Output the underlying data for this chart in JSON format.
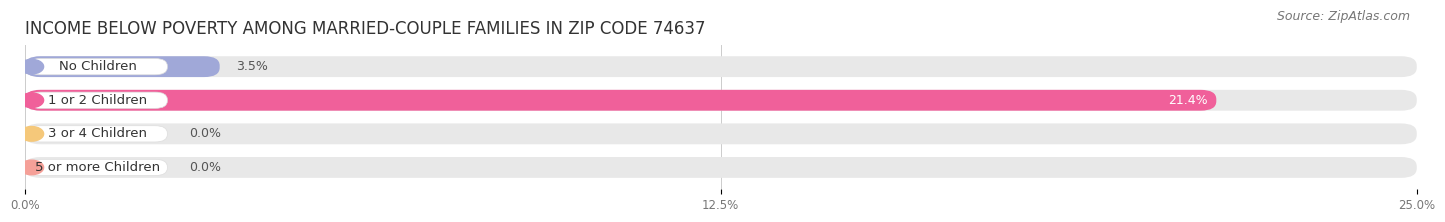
{
  "title": "INCOME BELOW POVERTY AMONG MARRIED-COUPLE FAMILIES IN ZIP CODE 74637",
  "source": "Source: ZipAtlas.com",
  "categories": [
    "No Children",
    "1 or 2 Children",
    "3 or 4 Children",
    "5 or more Children"
  ],
  "values": [
    3.5,
    21.4,
    0.0,
    0.0
  ],
  "bar_colors": [
    "#a0a8d8",
    "#f0609a",
    "#f5c87a",
    "#f5a098"
  ],
  "xlim": [
    0,
    25.0
  ],
  "xticks": [
    0.0,
    12.5,
    25.0
  ],
  "xtick_labels": [
    "0.0%",
    "12.5%",
    "25.0%"
  ],
  "title_fontsize": 12,
  "source_fontsize": 9,
  "label_fontsize": 9.5,
  "value_fontsize": 9,
  "background_color": "#ffffff",
  "bar_bg_color": "#e8e8e8",
  "label_bg": "#f8f8f8"
}
